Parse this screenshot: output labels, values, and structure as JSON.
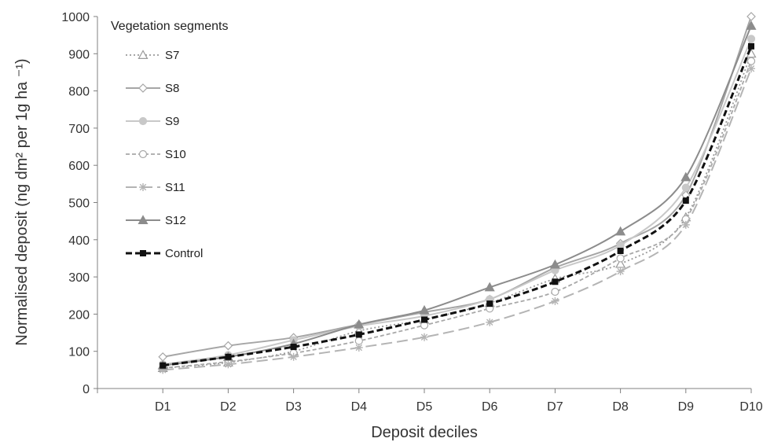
{
  "chart_data": {
    "type": "line",
    "xlabel": "Deposit deciles",
    "ylabel": "Normalised deposit (ng dm² per 1g ha ⁻¹)",
    "ylim": [
      0,
      1000
    ],
    "yticks": [
      0,
      100,
      200,
      300,
      400,
      500,
      600,
      700,
      800,
      900,
      1000
    ],
    "categories": [
      "D1",
      "D2",
      "D3",
      "D4",
      "D5",
      "D6",
      "D7",
      "D8",
      "D9",
      "D10"
    ],
    "legend_title": "Vegetation segments",
    "legend_position": "top-left",
    "grid": false,
    "series": [
      {
        "name": "S7",
        "color": "#9a9a9a",
        "dash": "2,3",
        "width": 1.8,
        "marker": "triangle-open",
        "values": [
          55,
          70,
          100,
          155,
          185,
          230,
          295,
          335,
          460,
          900
        ]
      },
      {
        "name": "S8",
        "color": "#a6a6a6",
        "dash": "",
        "width": 2,
        "marker": "diamond-open",
        "values": [
          85,
          115,
          137,
          172,
          205,
          240,
          325,
          390,
          520,
          1000
        ]
      },
      {
        "name": "S9",
        "color": "#c8c8c8",
        "dash": "",
        "width": 2,
        "marker": "circle-filled",
        "values": [
          65,
          90,
          130,
          168,
          195,
          240,
          318,
          385,
          540,
          940
        ]
      },
      {
        "name": "S10",
        "color": "#a8a8a8",
        "dash": "5,3",
        "width": 1.8,
        "marker": "circle-open",
        "values": [
          55,
          72,
          95,
          128,
          170,
          215,
          260,
          350,
          455,
          880
        ]
      },
      {
        "name": "S11",
        "color": "#b4b4b4",
        "dash": "14,6",
        "width": 2,
        "marker": "star",
        "values": [
          50,
          65,
          85,
          110,
          138,
          178,
          235,
          315,
          440,
          860
        ]
      },
      {
        "name": "S12",
        "color": "#8c8c8c",
        "dash": "",
        "width": 2,
        "marker": "triangle-filled",
        "values": [
          62,
          85,
          120,
          172,
          210,
          272,
          333,
          422,
          568,
          975
        ]
      },
      {
        "name": "Control",
        "color": "#111111",
        "dash": "8,4",
        "width": 3,
        "marker": "square-filled",
        "values": [
          62,
          85,
          112,
          145,
          185,
          228,
          287,
          370,
          505,
          920
        ]
      }
    ]
  }
}
